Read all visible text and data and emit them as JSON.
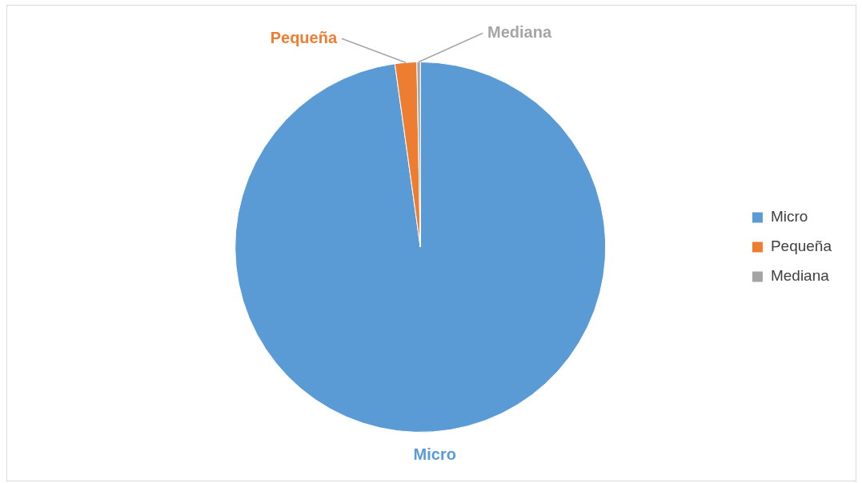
{
  "chart_data": {
    "type": "pie",
    "categories": [
      "Micro",
      "Pequeña",
      "Mediana"
    ],
    "values": [
      97.8,
      1.9,
      0.3
    ],
    "colors": [
      "#5b9bd5",
      "#ed7d31",
      "#a5a5a5"
    ],
    "legend": "right"
  }
}
